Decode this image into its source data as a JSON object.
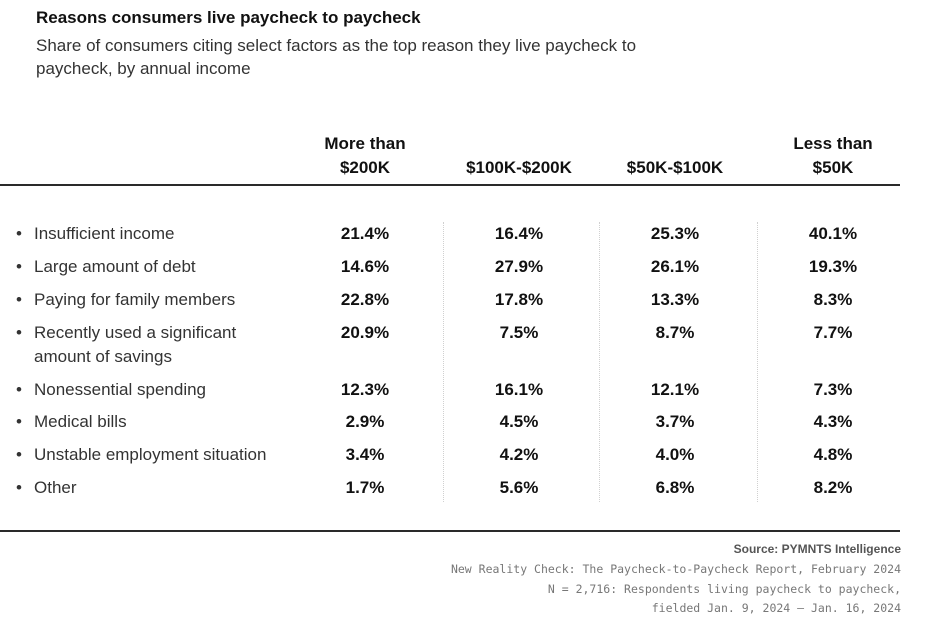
{
  "chart_data": {
    "type": "table",
    "title": "Reasons consumers live paycheck to paycheck",
    "subtitle": "Share of consumers citing select factors as the top reason they live paycheck to paycheck, by annual income",
    "columns": [
      "More than $200K",
      "$100K-$200K",
      "$50K-$100K",
      "Less than $50K"
    ],
    "rows": [
      {
        "label": "Insufficient income",
        "values": [
          "21.4%",
          "16.4%",
          "25.3%",
          "40.1%"
        ]
      },
      {
        "label": "Large amount of debt",
        "values": [
          "14.6%",
          "27.9%",
          "26.1%",
          "19.3%"
        ]
      },
      {
        "label": "Paying for family members",
        "values": [
          "22.8%",
          "17.8%",
          "13.3%",
          "8.3%"
        ]
      },
      {
        "label": "Recently used a significant amount of savings",
        "values": [
          "20.9%",
          "7.5%",
          "8.7%",
          "7.7%"
        ]
      },
      {
        "label": "Nonessential spending",
        "values": [
          "12.3%",
          "16.1%",
          "12.1%",
          "7.3%"
        ]
      },
      {
        "label": "Medical bills",
        "values": [
          "2.9%",
          "4.5%",
          "3.7%",
          "4.3%"
        ]
      },
      {
        "label": "Unstable employment situation",
        "values": [
          "3.4%",
          "4.2%",
          "4.0%",
          "4.8%"
        ]
      },
      {
        "label": "Other",
        "values": [
          "1.7%",
          "5.6%",
          "6.8%",
          "8.2%"
        ]
      }
    ]
  },
  "header_lines": {
    "col0_line1": "More than",
    "col0_line2": "$200K",
    "col1": "$100K-$200K",
    "col2": "$50K-$100K",
    "col3_line1": "Less than",
    "col3_line2": "$50K"
  },
  "source": {
    "heading": "Source: PYMNTS Intelligence",
    "lines": [
      "New Reality Check: The Paycheck-to-Paycheck Report, February 2024",
      "N = 2,716: Respondents living paycheck to paycheck,",
      "fielded Jan. 9, 2024 – Jan. 16, 2024"
    ]
  },
  "bullet_glyph": "•"
}
